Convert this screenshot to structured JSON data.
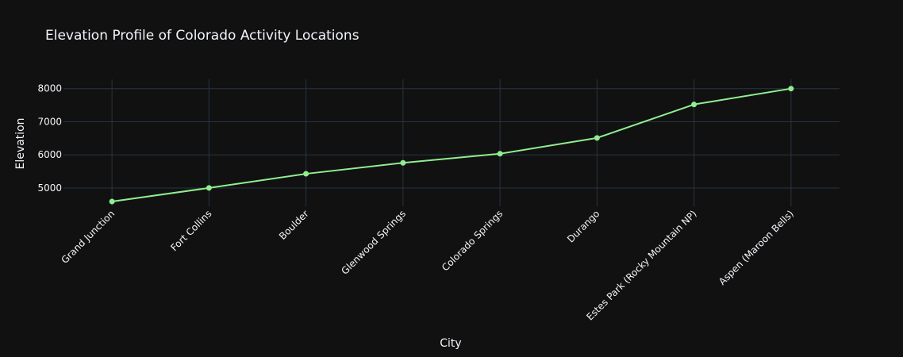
{
  "chart_data": {
    "type": "line",
    "title": "Elevation Profile of Colorado Activity Locations",
    "xlabel": "City",
    "ylabel": "Elevation",
    "categories": [
      "Grand Junction",
      "Fort Collins",
      "Boulder",
      "Glenwood Springs",
      "Colorado Springs",
      "Durango",
      "Estes Park (Rocky Mountain NP)",
      "Aspen (Maroon Bells)"
    ],
    "series": [
      {
        "values": [
          4593,
          5003,
          5430,
          5761,
          6035,
          6512,
          7522,
          8000
        ],
        "color": "#90ee90"
      }
    ],
    "ylim": [
      4450,
      8280
    ],
    "yticks": [
      5000,
      6000,
      7000,
      8000
    ],
    "grid": true,
    "background": "#111111",
    "grid_color": "#283442",
    "text_color": "#f2f5fa"
  }
}
